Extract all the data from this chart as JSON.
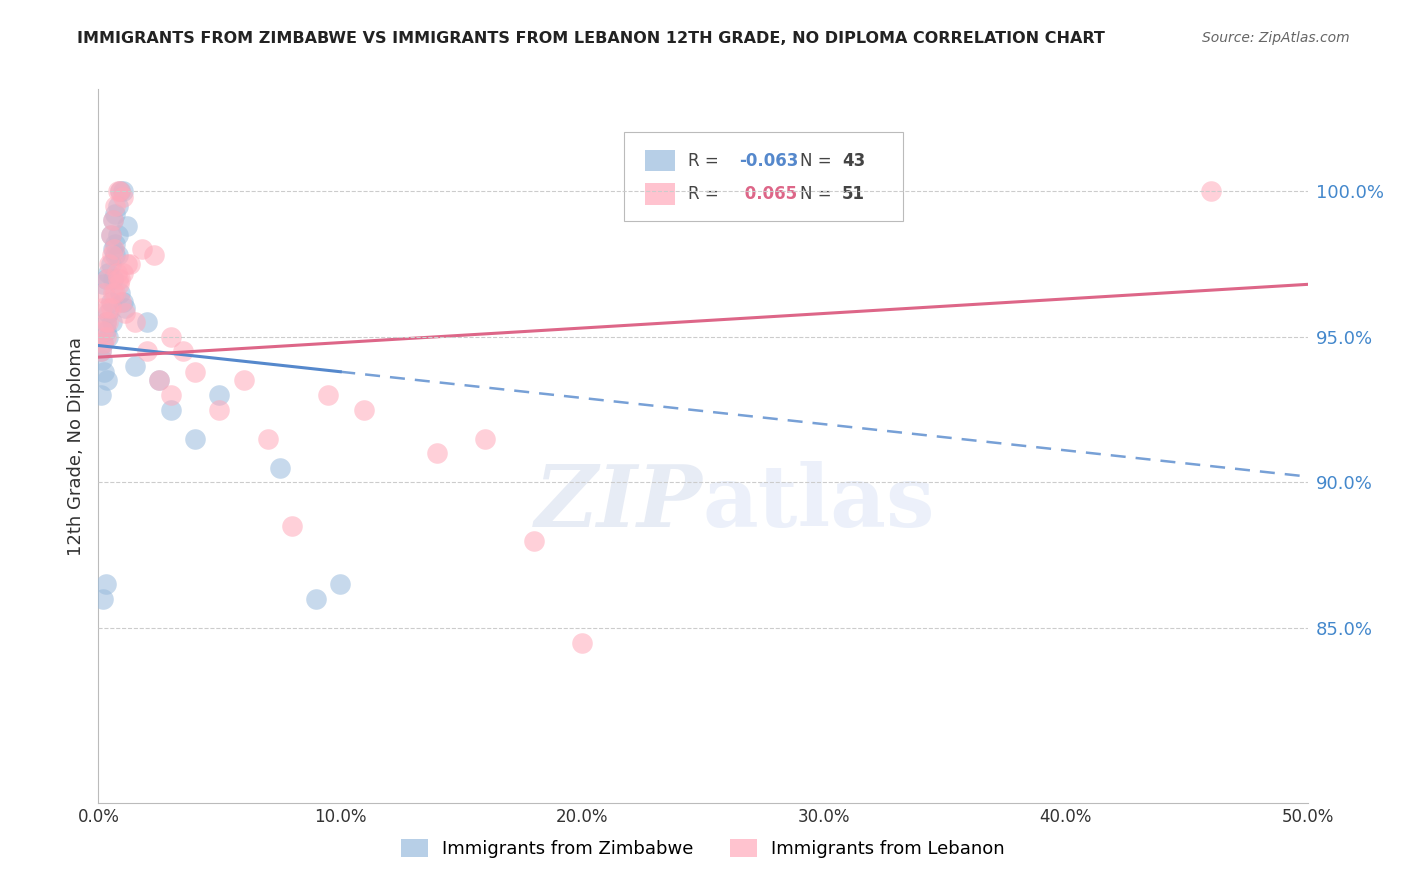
{
  "title": "IMMIGRANTS FROM ZIMBABWE VS IMMIGRANTS FROM LEBANON 12TH GRADE, NO DIPLOMA CORRELATION CHART",
  "source": "Source: ZipAtlas.com",
  "ylabel": "12th Grade, No Diploma",
  "yticks": [
    85.0,
    90.0,
    95.0,
    100.0
  ],
  "ytick_labels": [
    "85.0%",
    "90.0%",
    "95.0%",
    "100.0%"
  ],
  "xlim": [
    0.0,
    50.0
  ],
  "ylim": [
    79.0,
    103.5
  ],
  "legend_r_blue": "-0.063",
  "legend_n_blue": "43",
  "legend_r_pink": "0.065",
  "legend_n_pink": "51",
  "blue_color": "#99BBDD",
  "pink_color": "#FFAABB",
  "blue_line_color": "#5588CC",
  "pink_line_color": "#DD6688",
  "watermark_zip": "ZIP",
  "watermark_atlas": "atlas",
  "zimbabwe_label": "Immigrants from Zimbabwe",
  "lebanon_label": "Immigrants from Lebanon",
  "zimbabwe_x": [
    0.1,
    0.2,
    0.3,
    0.4,
    0.5,
    0.6,
    0.7,
    0.8,
    0.9,
    1.0,
    0.2,
    0.3,
    0.4,
    0.5,
    0.6,
    0.7,
    0.8,
    0.9,
    1.0,
    1.1,
    0.3,
    0.4,
    0.5,
    0.6,
    0.7,
    0.8,
    1.2,
    1.5,
    2.0,
    2.5,
    0.15,
    0.25,
    0.35,
    0.55,
    3.0,
    4.0,
    5.0,
    7.5,
    9.0,
    10.0,
    0.1,
    0.2,
    0.3
  ],
  "zimbabwe_y": [
    94.5,
    94.8,
    95.2,
    95.0,
    98.5,
    99.0,
    99.2,
    99.5,
    100.0,
    100.0,
    96.8,
    97.0,
    97.2,
    97.5,
    98.0,
    98.2,
    97.8,
    96.5,
    96.2,
    96.0,
    95.5,
    95.8,
    96.2,
    97.0,
    97.8,
    98.5,
    98.8,
    94.0,
    95.5,
    93.5,
    94.2,
    93.8,
    93.5,
    95.5,
    92.5,
    91.5,
    93.0,
    90.5,
    86.0,
    86.5,
    93.0,
    86.0,
    86.5
  ],
  "lebanon_x": [
    0.1,
    0.2,
    0.3,
    0.4,
    0.5,
    0.6,
    0.7,
    0.8,
    0.9,
    1.0,
    0.15,
    0.25,
    0.35,
    0.45,
    0.55,
    0.65,
    0.75,
    0.85,
    0.95,
    1.1,
    0.3,
    0.5,
    0.7,
    0.9,
    1.2,
    1.5,
    2.0,
    2.5,
    3.0,
    3.5,
    4.0,
    5.0,
    6.0,
    7.0,
    8.0,
    9.5,
    11.0,
    14.0,
    16.0,
    18.0,
    0.2,
    0.4,
    0.6,
    0.8,
    1.0,
    1.3,
    1.8,
    2.3,
    3.0,
    46.0,
    20.0
  ],
  "lebanon_y": [
    94.5,
    94.8,
    95.0,
    95.5,
    98.5,
    99.0,
    99.5,
    100.0,
    100.0,
    99.8,
    96.0,
    96.5,
    97.0,
    97.5,
    97.8,
    98.0,
    97.2,
    96.8,
    96.2,
    95.8,
    95.5,
    96.0,
    96.5,
    97.0,
    97.5,
    95.5,
    94.5,
    93.5,
    93.0,
    94.5,
    93.8,
    92.5,
    93.5,
    91.5,
    88.5,
    93.0,
    92.5,
    91.0,
    91.5,
    88.0,
    95.2,
    96.0,
    96.5,
    97.0,
    97.2,
    97.5,
    98.0,
    97.8,
    95.0,
    100.0,
    84.5
  ],
  "blue_intercept": 94.7,
  "blue_slope": -0.09,
  "pink_intercept": 94.3,
  "pink_slope": 0.05
}
